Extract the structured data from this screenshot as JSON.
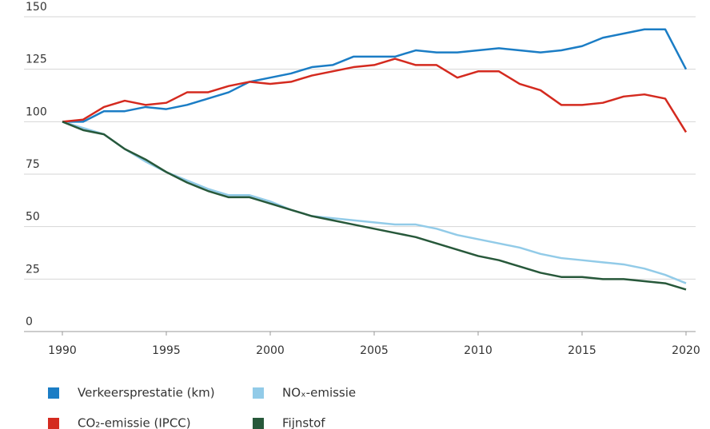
{
  "chart_data": {
    "type": "line",
    "x": [
      1990,
      1991,
      1992,
      1993,
      1994,
      1995,
      1996,
      1997,
      1998,
      1999,
      2000,
      2001,
      2002,
      2003,
      2004,
      2005,
      2006,
      2007,
      2008,
      2009,
      2010,
      2011,
      2012,
      2013,
      2014,
      2015,
      2016,
      2017,
      2018,
      2019,
      2020
    ],
    "series": [
      {
        "name": "Verkeersprestatie (km)",
        "color": "#1b7dc5",
        "values": [
          100,
          100,
          105,
          105,
          107,
          106,
          108,
          111,
          114,
          119,
          121,
          123,
          126,
          127,
          131,
          131,
          131,
          134,
          133,
          133,
          134,
          135,
          134,
          133,
          134,
          136,
          140,
          142,
          144,
          144,
          125
        ]
      },
      {
        "name": "NOₓ-emissie",
        "color": "#92cbe8",
        "values": [
          100,
          97,
          94,
          87,
          81,
          76,
          72,
          68,
          65,
          65,
          62,
          58,
          55,
          54,
          53,
          52,
          51,
          51,
          49,
          46,
          44,
          42,
          40,
          37,
          35,
          34,
          33,
          32,
          30,
          27,
          23
        ]
      },
      {
        "name": "CO₂-emissie (IPCC)",
        "color": "#d42a1f",
        "values": [
          100,
          101,
          107,
          110,
          108,
          109,
          114,
          114,
          117,
          119,
          118,
          119,
          122,
          124,
          126,
          127,
          130,
          127,
          127,
          121,
          124,
          124,
          118,
          115,
          108,
          108,
          109,
          112,
          113,
          111,
          95
        ]
      },
      {
        "name": "Fijnstof",
        "color": "#27583a",
        "values": [
          100,
          96,
          94,
          87,
          82,
          76,
          71,
          67,
          64,
          64,
          61,
          58,
          55,
          53,
          51,
          49,
          47,
          45,
          42,
          39,
          36,
          34,
          31,
          28,
          26,
          26,
          25,
          25,
          24,
          23,
          20
        ]
      }
    ],
    "xlim": [
      1990,
      2020
    ],
    "xticks": [
      1990,
      1995,
      2000,
      2005,
      2010,
      2015,
      2020
    ],
    "ylim": [
      0,
      150
    ],
    "yticks": [
      0,
      25,
      50,
      75,
      100,
      125,
      150
    ],
    "grid": true,
    "legend": "bottom"
  }
}
